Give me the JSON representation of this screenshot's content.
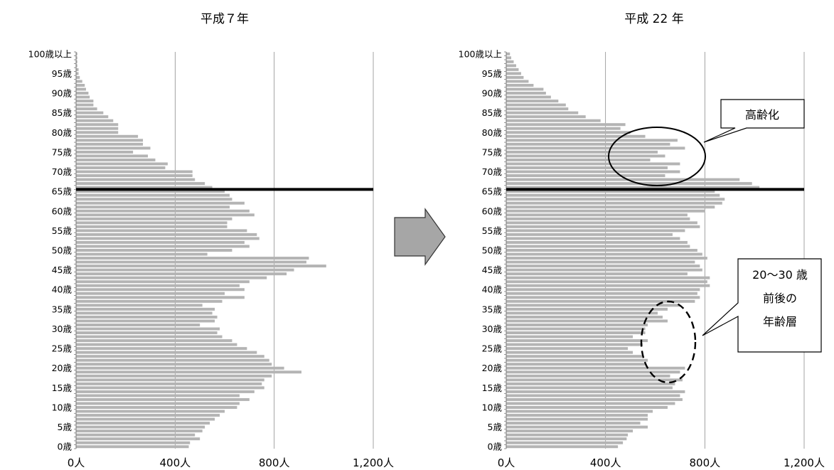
{
  "chart_data": [
    {
      "type": "bar",
      "orientation": "horizontal",
      "title": "平成７年",
      "xlim": [
        0,
        1200
      ],
      "xticks": [
        "0人",
        "400人",
        "800人",
        "1,200人"
      ],
      "xtick_values": [
        0,
        400,
        800,
        1200
      ],
      "ytick_labels": [
        "0歳",
        "5歳",
        "10歳",
        "15歳",
        "20歳",
        "25歳",
        "30歳",
        "35歳",
        "40歳",
        "45歳",
        "50歳",
        "55歳",
        "60歳",
        "65歳",
        "70歳",
        "75歳",
        "80歳",
        "85歳",
        "90歳",
        "95歳",
        "100歳以上"
      ],
      "grid": "vertical",
      "reference_line_age": 65.5,
      "bar_color": "#b4b4b4",
      "ages": [
        0,
        1,
        2,
        3,
        4,
        5,
        6,
        7,
        8,
        9,
        10,
        11,
        12,
        13,
        14,
        15,
        16,
        17,
        18,
        19,
        20,
        21,
        22,
        23,
        24,
        25,
        26,
        27,
        28,
        29,
        30,
        31,
        32,
        33,
        34,
        35,
        36,
        37,
        38,
        39,
        40,
        41,
        42,
        43,
        44,
        45,
        46,
        47,
        48,
        49,
        50,
        51,
        52,
        53,
        54,
        55,
        56,
        57,
        58,
        59,
        60,
        61,
        62,
        63,
        64,
        65,
        66,
        67,
        68,
        69,
        70,
        71,
        72,
        73,
        74,
        75,
        76,
        77,
        78,
        79,
        80,
        81,
        82,
        83,
        84,
        85,
        86,
        87,
        88,
        89,
        90,
        91,
        92,
        93,
        94,
        95,
        96,
        97,
        98,
        99,
        100
      ],
      "values": [
        455,
        460,
        500,
        480,
        510,
        520,
        540,
        560,
        580,
        600,
        650,
        660,
        700,
        660,
        720,
        760,
        750,
        760,
        790,
        910,
        840,
        790,
        780,
        760,
        730,
        690,
        650,
        630,
        590,
        570,
        580,
        500,
        560,
        570,
        550,
        560,
        510,
        590,
        680,
        600,
        680,
        660,
        700,
        770,
        850,
        880,
        1010,
        930,
        940,
        530,
        630,
        700,
        680,
        740,
        730,
        690,
        610,
        610,
        630,
        720,
        700,
        620,
        680,
        630,
        620,
        600,
        550,
        520,
        480,
        470,
        470,
        360,
        370,
        320,
        290,
        230,
        300,
        270,
        270,
        250,
        170,
        170,
        170,
        150,
        130,
        110,
        85,
        70,
        70,
        55,
        50,
        40,
        35,
        25,
        15,
        10,
        10,
        5,
        5,
        5,
        5
      ]
    },
    {
      "type": "bar",
      "orientation": "horizontal",
      "title": "平成 22 年",
      "xlim": [
        0,
        1200
      ],
      "xticks": [
        "0人",
        "400人",
        "800人",
        "1,200人"
      ],
      "xtick_values": [
        0,
        400,
        800,
        1200
      ],
      "ytick_labels": [
        "0歳",
        "5歳",
        "10歳",
        "15歳",
        "20歳",
        "25歳",
        "30歳",
        "35歳",
        "40歳",
        "45歳",
        "50歳",
        "55歳",
        "60歳",
        "65歳",
        "70歳",
        "75歳",
        "80歳",
        "85歳",
        "90歳",
        "95歳",
        "100歳以上"
      ],
      "grid": "vertical",
      "reference_line_age": 65.5,
      "bar_color": "#b4b4b4",
      "ages": [
        0,
        1,
        2,
        3,
        4,
        5,
        6,
        7,
        8,
        9,
        10,
        11,
        12,
        13,
        14,
        15,
        16,
        17,
        18,
        19,
        20,
        21,
        22,
        23,
        24,
        25,
        26,
        27,
        28,
        29,
        30,
        31,
        32,
        33,
        34,
        35,
        36,
        37,
        38,
        39,
        40,
        41,
        42,
        43,
        44,
        45,
        46,
        47,
        48,
        49,
        50,
        51,
        52,
        53,
        54,
        55,
        56,
        57,
        58,
        59,
        60,
        61,
        62,
        63,
        64,
        65,
        66,
        67,
        68,
        69,
        70,
        71,
        72,
        73,
        74,
        75,
        76,
        77,
        78,
        79,
        80,
        81,
        82,
        83,
        84,
        85,
        86,
        87,
        88,
        89,
        90,
        91,
        92,
        93,
        94,
        95,
        96,
        97,
        98,
        99,
        100
      ],
      "values": [
        450,
        470,
        485,
        490,
        510,
        570,
        540,
        570,
        570,
        590,
        650,
        680,
        710,
        700,
        720,
        670,
        680,
        710,
        660,
        700,
        720,
        560,
        570,
        550,
        510,
        490,
        550,
        570,
        510,
        560,
        560,
        570,
        650,
        630,
        610,
        650,
        700,
        760,
        780,
        770,
        780,
        820,
        810,
        820,
        730,
        790,
        780,
        760,
        810,
        790,
        770,
        740,
        730,
        700,
        670,
        720,
        780,
        770,
        740,
        730,
        800,
        840,
        870,
        880,
        860,
        840,
        1020,
        990,
        940,
        640,
        700,
        650,
        700,
        580,
        640,
        610,
        720,
        660,
        690,
        560,
        500,
        460,
        480,
        380,
        320,
        290,
        250,
        240,
        210,
        180,
        160,
        150,
        110,
        90,
        70,
        60,
        50,
        40,
        30,
        20,
        15
      ]
    }
  ],
  "annotations": {
    "arrow": "right-arrow",
    "callout_aging": "高齢化",
    "callout_young_line1": "20～30 歳",
    "callout_young_line2": "前後の",
    "callout_young_line3": "年齢層"
  }
}
